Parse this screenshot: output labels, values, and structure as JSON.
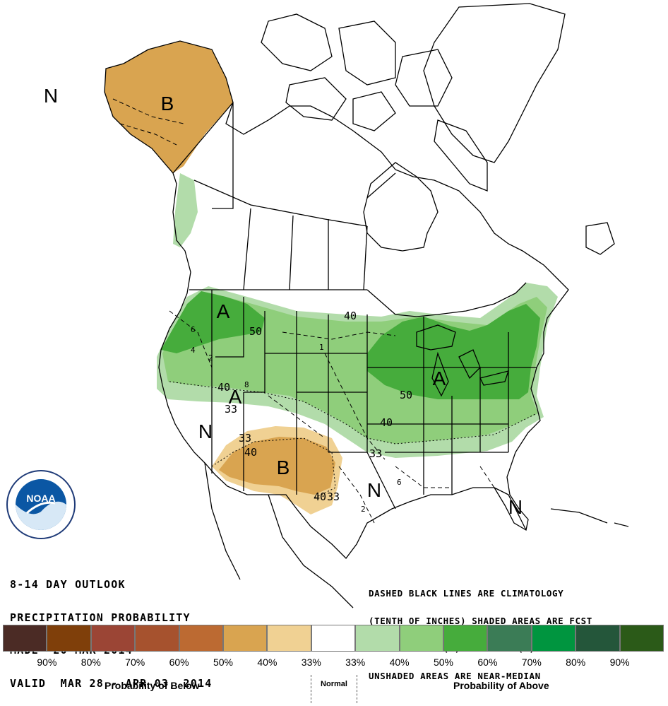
{
  "outlook": {
    "line1": "8-14 DAY OUTLOOK",
    "line2": "PRECIPITATION PROBABILITY",
    "line3": "MADE  20 MAR 2014",
    "line4": "VALID  MAR 28 - APR 03, 2014"
  },
  "note": {
    "line1": "DASHED BLACK LINES ARE CLIMATOLOGY",
    "line2": "(TENTH OF INCHES) SHADED AREAS ARE FCST",
    "line3": "VALUES ABOVE (A) OR BELOW (B) MEDIAN",
    "line4": "UNSHADED AREAS ARE NEAR-MEDIAN"
  },
  "map_labels": {
    "alaska_B": "B",
    "alaska_N": "N",
    "nw_A": "A",
    "ne_A": "A",
    "sw_A": "A",
    "sw_B": "B",
    "n_west": "N",
    "n_texas": "N",
    "n_florida": "N",
    "c50_west": "50",
    "c40_north": "40",
    "c40_west": "40",
    "c33_west": "33",
    "c50_east": "50",
    "c40_east": "40",
    "c33_east": "33",
    "c33_sw": "33",
    "c40_sw": "40",
    "c40_tx": "40",
    "c33_tx": "33",
    "clim_6a": "6",
    "clim_4": "4",
    "clim_2": "2",
    "clim_8": "8",
    "clim_1": "1",
    "clim_6b": "6",
    "clim_2b": "2"
  },
  "logo": {
    "text": "NOAA"
  },
  "legend": {
    "colors": [
      "#4b2b25",
      "#7f3f0a",
      "#9b4535",
      "#a6522e",
      "#bc6a32",
      "#d9a450",
      "#f0d193",
      "#ffffff",
      "#b2dcaa",
      "#8fce7b",
      "#46ac3c",
      "#3b7c56",
      "#00953f",
      "#24563a",
      "#2b5a18"
    ],
    "ticks": [
      "90%",
      "80%",
      "70%",
      "60%",
      "50%",
      "40%",
      "33%",
      "33%",
      "40%",
      "50%",
      "60%",
      "70%",
      "80%",
      "90%"
    ],
    "below_label": "Probability of Below",
    "normal_label": "Normal",
    "above_label": "Probability of Above"
  }
}
